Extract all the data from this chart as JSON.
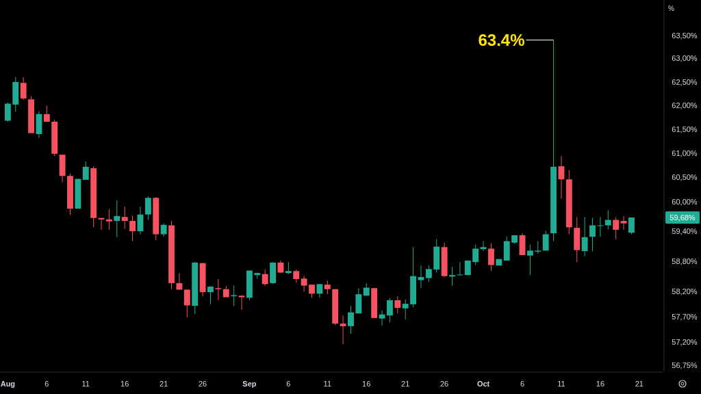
{
  "chart_data": {
    "type": "candlestick",
    "ylabel": "%",
    "log": true,
    "ylim": [
      56.63,
      64.27
    ],
    "yticks": [
      {
        "value": 56.75,
        "label": "56,75%"
      },
      {
        "value": 57.2,
        "label": "57,20%"
      },
      {
        "value": 57.7,
        "label": "57,70%"
      },
      {
        "value": 58.2,
        "label": "58,20%"
      },
      {
        "value": 58.8,
        "label": "58,80%"
      },
      {
        "value": 59.4,
        "label": "59,40%"
      },
      {
        "value": 60,
        "label": "60,00%"
      },
      {
        "value": 60.5,
        "label": "60,50%"
      },
      {
        "value": 61,
        "label": "61,00%"
      },
      {
        "value": 61.5,
        "label": "61,50%"
      },
      {
        "value": 62,
        "label": "62,00%"
      },
      {
        "value": 62.5,
        "label": "62,50%"
      },
      {
        "value": 63,
        "label": "63,00%"
      },
      {
        "value": 63.5,
        "label": "63,50%"
      }
    ],
    "xlim": [
      "--07-31",
      "--10-24"
    ],
    "xticks": [
      {
        "value": "--08-01",
        "label": "Aug"
      },
      {
        "value": "--08-06",
        "label": "6"
      },
      {
        "value": "--08-11",
        "label": "11"
      },
      {
        "value": "--08-16",
        "label": "16"
      },
      {
        "value": "--08-21",
        "label": "21"
      },
      {
        "value": "--08-26",
        "label": "26"
      },
      {
        "value": "--09-01",
        "label": "Sep"
      },
      {
        "value": "--09-06",
        "label": "6"
      },
      {
        "value": "--09-11",
        "label": "11"
      },
      {
        "value": "--09-16",
        "label": "16"
      },
      {
        "value": "--09-21",
        "label": "21"
      },
      {
        "value": "--09-26",
        "label": "26"
      },
      {
        "value": "--10-01",
        "label": "Oct"
      },
      {
        "value": "--10-06",
        "label": "6"
      },
      {
        "value": "--10-11",
        "label": "11"
      },
      {
        "value": "--10-16",
        "label": "16"
      },
      {
        "value": "--10-21",
        "label": "21"
      }
    ],
    "x": [
      "--08-01",
      "--08-02",
      "--08-03",
      "--08-04",
      "--08-05",
      "--08-06",
      "--08-07",
      "--08-08",
      "--08-09",
      "--08-10",
      "--08-11",
      "--08-12",
      "--08-13",
      "--08-14",
      "--08-15",
      "--08-16",
      "--08-17",
      "--08-18",
      "--08-19",
      "--08-20",
      "--08-21",
      "--08-22",
      "--08-23",
      "--08-24",
      "--08-25",
      "--08-26",
      "--08-27",
      "--08-28",
      "--08-29",
      "--08-30",
      "--08-31",
      "--09-01",
      "--09-02",
      "--09-03",
      "--09-04",
      "--09-05",
      "--09-06",
      "--09-07",
      "--09-08",
      "--09-09",
      "--09-10",
      "--09-11",
      "--09-12",
      "--09-13",
      "--09-14",
      "--09-15",
      "--09-16",
      "--09-17",
      "--09-18",
      "--09-19",
      "--09-20",
      "--09-21",
      "--09-22",
      "--09-23",
      "--09-24",
      "--09-25",
      "--09-26",
      "--09-27",
      "--09-28",
      "--09-29",
      "--09-30",
      "--10-01",
      "--10-02",
      "--10-03",
      "--10-04",
      "--10-05",
      "--10-06",
      "--10-07",
      "--10-08",
      "--10-09",
      "--10-10",
      "--10-11",
      "--10-12",
      "--10-13",
      "--10-14",
      "--10-15",
      "--10-16",
      "--10-17",
      "--10-18",
      "--10-19",
      "--10-20"
    ],
    "ohlc": [
      [
        61.68,
        62.06,
        61.66,
        62.04
      ],
      [
        62.02,
        62.6,
        61.87,
        62.5
      ],
      [
        62.48,
        62.6,
        62.12,
        62.15
      ],
      [
        62.13,
        62.2,
        61.42,
        61.42
      ],
      [
        61.4,
        61.88,
        61.32,
        61.82
      ],
      [
        61.82,
        62.0,
        61.66,
        61.66
      ],
      [
        61.66,
        61.7,
        60.94,
        60.99
      ],
      [
        60.97,
        60.97,
        60.4,
        60.53
      ],
      [
        60.53,
        60.58,
        59.73,
        59.86
      ],
      [
        59.86,
        60.47,
        59.86,
        60.47
      ],
      [
        60.45,
        60.83,
        60.45,
        60.72
      ],
      [
        60.69,
        60.73,
        59.48,
        59.67
      ],
      [
        59.67,
        59.67,
        59.43,
        59.64
      ],
      [
        59.64,
        59.85,
        59.43,
        59.6
      ],
      [
        59.61,
        60.03,
        59.28,
        59.71
      ],
      [
        59.69,
        59.9,
        59.45,
        59.61
      ],
      [
        59.61,
        59.72,
        59.2,
        59.4
      ],
      [
        59.4,
        59.9,
        59.34,
        59.74
      ],
      [
        59.74,
        60.11,
        59.63,
        60.08
      ],
      [
        60.08,
        60.1,
        59.22,
        59.34
      ],
      [
        59.34,
        59.56,
        59.29,
        59.53
      ],
      [
        59.52,
        59.61,
        58.24,
        58.36
      ],
      [
        58.36,
        58.56,
        58.23,
        58.23
      ],
      [
        58.23,
        58.23,
        57.68,
        57.92
      ],
      [
        57.91,
        58.78,
        57.75,
        58.77
      ],
      [
        58.76,
        58.76,
        58.1,
        58.18
      ],
      [
        58.18,
        58.3,
        57.94,
        58.29
      ],
      [
        58.26,
        58.44,
        58.03,
        58.24
      ],
      [
        58.24,
        58.3,
        58.08,
        58.08
      ],
      [
        58.1,
        58.31,
        57.91,
        58.12
      ],
      [
        58.11,
        58.12,
        57.83,
        58.08
      ],
      [
        58.07,
        58.61,
        58.02,
        58.61
      ],
      [
        58.52,
        58.57,
        58.45,
        58.56
      ],
      [
        58.54,
        58.63,
        58.31,
        58.34
      ],
      [
        58.36,
        58.78,
        58.34,
        58.77
      ],
      [
        58.77,
        58.81,
        58.56,
        58.57
      ],
      [
        58.56,
        58.78,
        58.54,
        58.6
      ],
      [
        58.6,
        58.63,
        58.37,
        58.44
      ],
      [
        58.45,
        58.5,
        58.19,
        58.31
      ],
      [
        58.33,
        58.33,
        58.07,
        58.15
      ],
      [
        58.15,
        58.34,
        58.07,
        58.34
      ],
      [
        58.33,
        58.41,
        58.14,
        58.24
      ],
      [
        58.24,
        58.24,
        57.53,
        57.56
      ],
      [
        57.56,
        57.72,
        57.16,
        57.51
      ],
      [
        57.51,
        57.91,
        57.36,
        57.78
      ],
      [
        57.76,
        58.26,
        57.76,
        58.14
      ],
      [
        58.11,
        58.36,
        58.11,
        58.27
      ],
      [
        58.26,
        58.26,
        57.67,
        57.67
      ],
      [
        57.66,
        57.82,
        57.52,
        57.74
      ],
      [
        57.72,
        58.06,
        57.59,
        58.02
      ],
      [
        58.02,
        58.1,
        57.76,
        57.87
      ],
      [
        57.86,
        58.04,
        57.64,
        57.95
      ],
      [
        57.94,
        59.08,
        57.88,
        58.5
      ],
      [
        58.42,
        58.71,
        58.26,
        58.48
      ],
      [
        58.46,
        58.71,
        58.38,
        58.64
      ],
      [
        58.63,
        59.24,
        58.57,
        59.09
      ],
      [
        59.08,
        59.17,
        58.48,
        58.5
      ],
      [
        58.49,
        58.68,
        58.31,
        58.52
      ],
      [
        58.52,
        58.78,
        58.52,
        58.53
      ],
      [
        58.52,
        58.81,
        58.52,
        58.81
      ],
      [
        58.78,
        59.13,
        58.72,
        59.05
      ],
      [
        59.04,
        59.2,
        59.0,
        59.08
      ],
      [
        59.05,
        59.16,
        58.6,
        58.72
      ],
      [
        58.71,
        58.84,
        58.71,
        58.84
      ],
      [
        58.81,
        59.29,
        58.81,
        59.2
      ],
      [
        59.17,
        59.32,
        59.15,
        59.32
      ],
      [
        59.32,
        59.36,
        58.92,
        58.92
      ],
      [
        58.91,
        59.13,
        58.52,
        59.01
      ],
      [
        58.99,
        59.2,
        58.95,
        59.01
      ],
      [
        59.01,
        59.41,
        59.01,
        59.34
      ],
      [
        59.36,
        63.4,
        59.2,
        60.72
      ],
      [
        60.73,
        60.94,
        60.06,
        60.46
      ],
      [
        60.46,
        60.65,
        59.34,
        59.48
      ],
      [
        59.47,
        59.69,
        58.78,
        59.02
      ],
      [
        59.0,
        59.69,
        58.9,
        59.28
      ],
      [
        59.29,
        59.67,
        59.0,
        59.52
      ],
      [
        59.51,
        59.69,
        59.29,
        59.52
      ],
      [
        59.52,
        59.83,
        59.44,
        59.63
      ],
      [
        59.63,
        59.68,
        59.24,
        59.43
      ],
      [
        59.61,
        59.71,
        59.43,
        59.56
      ],
      [
        59.37,
        59.68,
        59.34,
        59.68
      ]
    ],
    "colors": [
      "#22ab94",
      "#22ab94",
      "#f7525f",
      "#f7525f",
      "#22ab94",
      "#f7525f",
      "#f7525f",
      "#f7525f",
      "#f7525f",
      "#22ab94",
      "#22ab94",
      "#f7525f",
      "#f7525f",
      "#f7525f",
      "#22ab94",
      "#f7525f",
      "#f7525f",
      "#22ab94",
      "#22ab94",
      "#f7525f",
      "#22ab94",
      "#f7525f",
      "#f7525f",
      "#f7525f",
      "#22ab94",
      "#f7525f",
      "#22ab94",
      "#f7525f",
      "#f7525f",
      "#22ab94",
      "#f7525f",
      "#22ab94",
      "#22ab94",
      "#f7525f",
      "#22ab94",
      "#f7525f",
      "#22ab94",
      "#f7525f",
      "#f7525f",
      "#f7525f",
      "#22ab94",
      "#f7525f",
      "#f7525f",
      "#f7525f",
      "#22ab94",
      "#22ab94",
      "#22ab94",
      "#f7525f",
      "#22ab94",
      "#22ab94",
      "#f7525f",
      "#22ab94",
      "#22ab94",
      "#22ab94",
      "#22ab94",
      "#22ab94",
      "#f7525f",
      "#22ab94",
      "#22ab94",
      "#22ab94",
      "#22ab94",
      "#22ab94",
      "#f7525f",
      "#22ab94",
      "#22ab94",
      "#22ab94",
      "#f7525f",
      "#22ab94",
      "#22ab94",
      "#22ab94",
      "#22ab94",
      "#f7525f",
      "#f7525f",
      "#f7525f",
      "#22ab94",
      "#22ab94",
      "#22ab94",
      "#22ab94",
      "#f7525f",
      "#f7525f",
      "#22ab94"
    ],
    "annotations": [
      {
        "text": "63.4%",
        "x": "--10-10",
        "y": 63.4
      },
      "59,68%"
    ]
  }
}
